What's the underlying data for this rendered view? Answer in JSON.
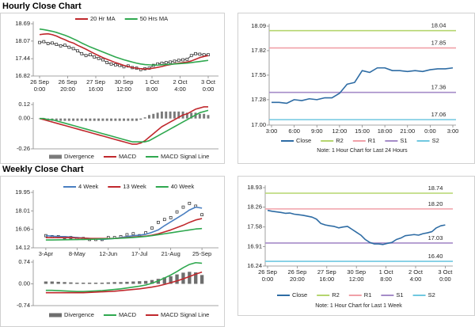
{
  "titles": [
    "Hourly Close Chart",
    "Weekly Close Chart"
  ],
  "chart_data": [
    {
      "type": "line",
      "legend": "top",
      "x": [
        0,
        3,
        6,
        9,
        12,
        15,
        18,
        21,
        24,
        27,
        30,
        33,
        36,
        39,
        42,
        45,
        48,
        51,
        54,
        57,
        60,
        63,
        66,
        69,
        72,
        75,
        78,
        81,
        84,
        87,
        90,
        93,
        96,
        99,
        102,
        105,
        108,
        111,
        114,
        117,
        120
      ],
      "xlim": [
        0,
        120
      ],
      "ylim": [
        16.82,
        18.69
      ],
      "yticks": [
        18.69,
        18.07,
        17.44,
        16.82
      ],
      "xticks": [
        {
          "value": 0,
          "label": "26 Sep\n0:00"
        },
        {
          "value": 20,
          "label": "26 Sep\n20:00"
        },
        {
          "value": 40,
          "label": "27 Sep\n16:00"
        },
        {
          "value": 60,
          "label": "30 Sep\n12:00"
        },
        {
          "value": 80,
          "label": "1 Oct\n8:00"
        },
        {
          "value": 100,
          "label": "2 Oct\n4:00"
        },
        {
          "value": 120,
          "label": "3 Oct\n0:00"
        }
      ],
      "series": [
        {
          "color": "#222222",
          "style": "line",
          "markers": true,
          "values": [
            18.02,
            18.05,
            17.98,
            18.0,
            17.95,
            17.9,
            17.92,
            17.85,
            17.8,
            17.72,
            17.62,
            17.55,
            17.58,
            17.5,
            17.45,
            17.4,
            17.3,
            17.25,
            17.22,
            17.2,
            17.15,
            17.18,
            17.12,
            17.1,
            17.05,
            17.08,
            17.1,
            17.2,
            17.25,
            17.28,
            17.3,
            17.32,
            17.35,
            17.38,
            17.4,
            17.42,
            17.55,
            17.62,
            17.6,
            17.58,
            17.58
          ]
        },
        {
          "name": "20 Hr MA",
          "color": "#c0282d",
          "style": "line",
          "values": [
            18.3,
            18.32,
            18.33,
            18.3,
            18.25,
            18.18,
            18.12,
            18.05,
            18.0,
            17.92,
            17.85,
            17.78,
            17.7,
            17.62,
            17.55,
            17.48,
            17.42,
            17.36,
            17.3,
            17.25,
            17.2,
            17.16,
            17.12,
            17.1,
            17.08,
            17.07,
            17.08,
            17.1,
            17.13,
            17.16,
            17.2,
            17.23,
            17.26,
            17.28,
            17.3,
            17.32,
            17.36,
            17.42,
            17.48,
            17.52,
            17.55
          ]
        },
        {
          "name": "50 Hrs MA",
          "color": "#2fa84f",
          "style": "line",
          "values": [
            18.5,
            18.48,
            18.45,
            18.42,
            18.38,
            18.33,
            18.28,
            18.22,
            18.15,
            18.08,
            18.0,
            17.93,
            17.86,
            17.8,
            17.74,
            17.68,
            17.62,
            17.56,
            17.5,
            17.45,
            17.4,
            17.36,
            17.32,
            17.28,
            17.25,
            17.23,
            17.22,
            17.21,
            17.21,
            17.22,
            17.23,
            17.24,
            17.25,
            17.26,
            17.27,
            17.28,
            17.3,
            17.32,
            17.34,
            17.36,
            17.38
          ]
        }
      ]
    },
    {
      "type": "combo",
      "legend": "bottom",
      "x": [
        0,
        3,
        6,
        9,
        12,
        15,
        18,
        21,
        24,
        27,
        30,
        33,
        36,
        39,
        42,
        45,
        48,
        51,
        54,
        57,
        60,
        63,
        66,
        69,
        72,
        75,
        78,
        81,
        84,
        87,
        90,
        93,
        96,
        99,
        102,
        105,
        108,
        111,
        114,
        117,
        120
      ],
      "xlim": [
        0,
        120
      ],
      "ylim": [
        -0.26,
        0.12
      ],
      "yticks": [
        0.12,
        {
          "value": 0,
          "label": "0.00"
        },
        -0.26
      ],
      "series": [
        {
          "name": "Divergence",
          "color": "#7a7a7a",
          "style": "bar",
          "values": [
            0,
            -0.01,
            -0.01,
            -0.02,
            -0.02,
            -0.02,
            -0.02,
            -0.02,
            -0.02,
            -0.02,
            -0.02,
            -0.02,
            -0.02,
            -0.02,
            -0.02,
            -0.02,
            -0.02,
            -0.02,
            -0.02,
            -0.02,
            -0.02,
            -0.02,
            -0.02,
            -0.02,
            -0.01,
            0.01,
            0.03,
            0.04,
            0.05,
            0.06,
            0.06,
            0.06,
            0.06,
            0.06,
            0.06,
            0.05,
            0.05,
            0.05,
            0.04,
            0.04,
            0.03
          ]
        },
        {
          "name": "MACD",
          "color": "#c0282d",
          "style": "line",
          "values": [
            0,
            -0.01,
            -0.02,
            -0.03,
            -0.04,
            -0.05,
            -0.06,
            -0.07,
            -0.08,
            -0.09,
            -0.1,
            -0.11,
            -0.12,
            -0.13,
            -0.14,
            -0.15,
            -0.16,
            -0.17,
            -0.18,
            -0.19,
            -0.2,
            -0.21,
            -0.22,
            -0.22,
            -0.21,
            -0.19,
            -0.16,
            -0.13,
            -0.1,
            -0.07,
            -0.05,
            -0.03,
            -0.01,
            0.01,
            0.03,
            0.04,
            0.06,
            0.08,
            0.09,
            0.1,
            0.1
          ]
        },
        {
          "name": "MACD Signal Line",
          "color": "#2fa84f",
          "style": "line",
          "values": [
            0,
            0,
            -0.01,
            -0.01,
            -0.02,
            -0.03,
            -0.04,
            -0.05,
            -0.06,
            -0.07,
            -0.08,
            -0.09,
            -0.1,
            -0.11,
            -0.12,
            -0.13,
            -0.14,
            -0.15,
            -0.16,
            -0.17,
            -0.18,
            -0.19,
            -0.2,
            -0.2,
            -0.2,
            -0.2,
            -0.19,
            -0.17,
            -0.15,
            -0.13,
            -0.11,
            -0.09,
            -0.07,
            -0.05,
            -0.03,
            -0.01,
            0.01,
            0.03,
            0.05,
            0.06,
            0.07
          ]
        }
      ]
    },
    {
      "type": "line",
      "legend": "bottom",
      "note": "Note: 1 Hour Chart for Last 24 Hours",
      "x": [
        0,
        1,
        2,
        3,
        4,
        5,
        6,
        7,
        8,
        9,
        10,
        11,
        12,
        13,
        14,
        15,
        16,
        17,
        18,
        19,
        20,
        21,
        22,
        23,
        24
      ],
      "xlim": [
        0,
        24
      ],
      "ylim": [
        17.0,
        18.09
      ],
      "yticks": [
        18.09,
        17.82,
        17.55,
        17.28,
        {
          "value": 17,
          "label": "17.00"
        }
      ],
      "xticks": [
        {
          "value": 0,
          "label": "3:00"
        },
        {
          "value": 3,
          "label": "6:00"
        },
        {
          "value": 6,
          "label": "9:00"
        },
        {
          "value": 9,
          "label": "12:00"
        },
        {
          "value": 12,
          "label": "15:00"
        },
        {
          "value": 15,
          "label": "18:00"
        },
        {
          "value": 18,
          "label": "21:00"
        },
        {
          "value": 21,
          "label": "0:00"
        },
        {
          "value": 24,
          "label": "3:00"
        }
      ],
      "series": [
        {
          "name": "Close",
          "color": "#2e6ca4",
          "style": "line",
          "values": [
            17.25,
            17.25,
            17.24,
            17.28,
            17.27,
            17.29,
            17.28,
            17.3,
            17.3,
            17.35,
            17.45,
            17.47,
            17.6,
            17.58,
            17.63,
            17.63,
            17.6,
            17.6,
            17.59,
            17.6,
            17.59,
            17.61,
            17.62,
            17.62,
            17.63
          ]
        }
      ],
      "levels": [
        {
          "name": "R2",
          "color": "#b5d56f",
          "value": 18.04
        },
        {
          "name": "R1",
          "color": "#f0a0a8",
          "value": 17.85
        },
        {
          "name": "S1",
          "color": "#a58cc8",
          "value": 17.36
        },
        {
          "name": "S2",
          "color": "#70c8e0",
          "value": 17.06
        }
      ]
    },
    {
      "type": "line",
      "legend": "top",
      "x": [
        0,
        1,
        2,
        3,
        4,
        5,
        6,
        7,
        8,
        9,
        10,
        11,
        12,
        13,
        14,
        15,
        16,
        17,
        18,
        19,
        20,
        21,
        22,
        23,
        24,
        25
      ],
      "xlim": [
        -1,
        26
      ],
      "ylim": [
        14.12,
        19.95
      ],
      "yticks": [
        19.95,
        18.01,
        16.06,
        14.12
      ],
      "xticks": [
        {
          "value": 0,
          "label": "3-Apr"
        },
        {
          "value": 5,
          "label": "8-May"
        },
        {
          "value": 10,
          "label": "12-Jun"
        },
        {
          "value": 15,
          "label": "17-Jul"
        },
        {
          "value": 20,
          "label": "21-Aug"
        },
        {
          "value": 25,
          "label": "25-Sep"
        }
      ],
      "series": [
        {
          "color": "#222222",
          "style": "markers",
          "markers": true,
          "values": [
            15.4,
            15.3,
            15.3,
            15.2,
            15.2,
            15.1,
            15.1,
            15.0,
            15.0,
            15.0,
            15.2,
            15.2,
            15.3,
            15.5,
            15.6,
            15.4,
            15.7,
            16.2,
            16.8,
            17.1,
            17.3,
            17.9,
            18.4,
            18.8,
            18.5,
            17.6
          ]
        },
        {
          "name": "4 Week",
          "color": "#4a7fc1",
          "style": "line",
          "values": [
            15.4,
            15.35,
            15.3,
            15.3,
            15.25,
            15.2,
            15.15,
            15.1,
            15.05,
            15.0,
            15.05,
            15.1,
            15.2,
            15.3,
            15.4,
            15.45,
            15.55,
            15.75,
            16.0,
            16.45,
            16.85,
            17.25,
            17.65,
            18.1,
            18.4,
            18.3
          ]
        },
        {
          "name": "13 Week",
          "color": "#c0282d",
          "style": "line",
          "values": [
            15.2,
            15.2,
            15.2,
            15.2,
            15.2,
            15.15,
            15.15,
            15.1,
            15.1,
            15.1,
            15.1,
            15.1,
            15.15,
            15.2,
            15.25,
            15.3,
            15.35,
            15.45,
            15.6,
            15.8,
            16.0,
            16.25,
            16.5,
            16.8,
            17.05,
            17.2
          ]
        },
        {
          "name": "40 Week",
          "color": "#2fa84f",
          "style": "line",
          "values": [
            14.95,
            14.95,
            14.96,
            14.97,
            14.98,
            14.99,
            15.0,
            15.01,
            15.03,
            15.05,
            15.07,
            15.1,
            15.13,
            15.17,
            15.21,
            15.26,
            15.32,
            15.4,
            15.5,
            15.6,
            15.7,
            15.8,
            15.9,
            16.0,
            16.1,
            16.15
          ]
        }
      ]
    },
    {
      "type": "combo",
      "legend": "bottom",
      "x": [
        0,
        1,
        2,
        3,
        4,
        5,
        6,
        7,
        8,
        9,
        10,
        11,
        12,
        13,
        14,
        15,
        16,
        17,
        18,
        19,
        20,
        21,
        22,
        23,
        24,
        25
      ],
      "xlim": [
        -1,
        26
      ],
      "ylim": [
        -0.74,
        0.74
      ],
      "yticks": [
        0.74,
        {
          "value": 0,
          "label": "0.00"
        },
        -0.74
      ],
      "series": [
        {
          "name": "Divergence",
          "color": "#6e6e6e",
          "style": "bar",
          "values": [
            0.08,
            0.08,
            0.07,
            0.06,
            0.05,
            0.04,
            0.04,
            0.04,
            0.04,
            0.04,
            0.05,
            0.06,
            0.06,
            0.07,
            0.08,
            0.09,
            0.1,
            0.13,
            0.17,
            0.22,
            0.26,
            0.32,
            0.38,
            0.41,
            0.39,
            0.3
          ]
        },
        {
          "name": "MACD",
          "color": "#2fa84f",
          "style": "line",
          "values": [
            -0.22,
            -0.22,
            -0.23,
            -0.24,
            -0.25,
            -0.26,
            -0.26,
            -0.25,
            -0.24,
            -0.23,
            -0.21,
            -0.19,
            -0.17,
            -0.14,
            -0.11,
            -0.08,
            -0.04,
            0.02,
            0.1,
            0.2,
            0.3,
            0.42,
            0.55,
            0.66,
            0.72,
            0.7
          ]
        },
        {
          "name": "MACD Signal Line",
          "color": "#c0282d",
          "style": "line",
          "values": [
            -0.3,
            -0.3,
            -0.3,
            -0.3,
            -0.3,
            -0.3,
            -0.3,
            -0.29,
            -0.28,
            -0.27,
            -0.26,
            -0.25,
            -0.23,
            -0.21,
            -0.19,
            -0.17,
            -0.14,
            -0.11,
            -0.07,
            -0.02,
            0.04,
            0.1,
            0.17,
            0.25,
            0.33,
            0.4
          ]
        }
      ]
    },
    {
      "type": "line",
      "legend": "bottom",
      "note": "Note: 1 Hour Chart for Last 1 Week",
      "x": [
        0,
        3,
        6,
        9,
        12,
        15,
        18,
        21,
        24,
        27,
        30,
        33,
        36,
        39,
        42,
        45,
        48,
        51,
        54,
        57,
        60,
        63,
        66,
        69,
        72,
        75,
        78,
        81,
        84,
        87,
        90,
        93,
        96,
        99,
        102,
        105,
        108,
        111,
        114,
        117,
        120
      ],
      "xlim": [
        0,
        123
      ],
      "ylim": [
        16.24,
        18.93
      ],
      "yticks": [
        18.93,
        18.26,
        17.58,
        16.91,
        16.24
      ],
      "xticks": [
        {
          "value": 0,
          "label": "26 Sep\n0:00"
        },
        {
          "value": 20,
          "label": "26 Sep\n20:00"
        },
        {
          "value": 40,
          "label": "27 Sep\n16:00"
        },
        {
          "value": 60,
          "label": "30 Sep\n12:00"
        },
        {
          "value": 80,
          "label": "1 Oct\n8:00"
        },
        {
          "value": 100,
          "label": "2 Oct\n4:00"
        },
        {
          "value": 120,
          "label": "3 Oct\n0:00"
        }
      ],
      "series": [
        {
          "name": "Close",
          "color": "#2e6ca4",
          "style": "line",
          "values": [
            18.15,
            18.12,
            18.1,
            18.08,
            18.05,
            18.06,
            18.02,
            18.0,
            17.98,
            17.95,
            17.92,
            17.85,
            17.7,
            17.65,
            17.62,
            17.6,
            17.55,
            17.58,
            17.6,
            17.5,
            17.4,
            17.3,
            17.15,
            17.05,
            17.0,
            17.0,
            16.98,
            17.02,
            17.05,
            17.15,
            17.2,
            17.28,
            17.3,
            17.32,
            17.3,
            17.35,
            17.38,
            17.42,
            17.55,
            17.62,
            17.65
          ]
        }
      ],
      "levels": [
        {
          "name": "R2",
          "color": "#b5d56f",
          "value": 18.74
        },
        {
          "name": "R1",
          "color": "#f0a0a8",
          "value": 18.2,
          "value_label": "18.20"
        },
        {
          "name": "S1",
          "color": "#a58cc8",
          "value": 17.03
        },
        {
          "name": "S2",
          "color": "#70c8e0",
          "value": 16.4,
          "value_label": "16.40"
        }
      ]
    }
  ]
}
